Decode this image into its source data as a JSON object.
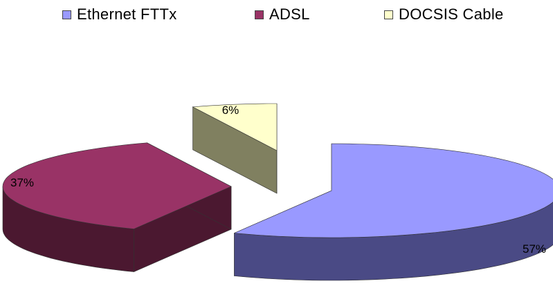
{
  "chart_data": {
    "type": "pie",
    "style": "3d-exploded",
    "title": "",
    "legend_position": "top",
    "slices": [
      {
        "label": "Ethernet FTTx",
        "value": 57,
        "display": "57%",
        "color": "#9999ff",
        "side_color": "#4a4a85"
      },
      {
        "label": "ADSL",
        "value": 37,
        "display": "37%",
        "color": "#993366",
        "side_color": "#4b1830"
      },
      {
        "label": "DOCSIS Cable",
        "value": 6,
        "display": "6%",
        "color": "#ffffcc",
        "side_color": "#808060"
      }
    ]
  }
}
